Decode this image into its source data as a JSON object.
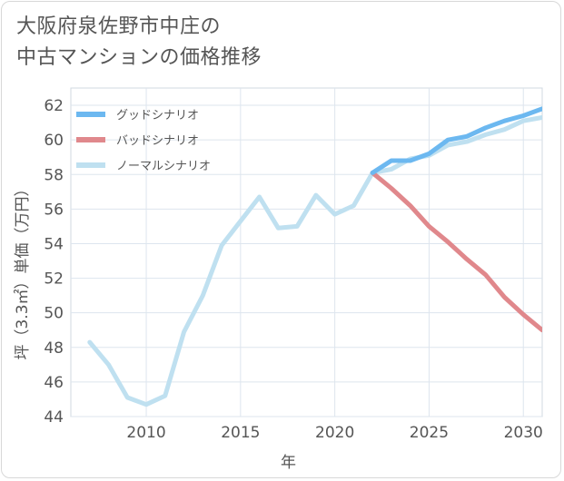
{
  "page": {
    "title_line1": "大阪府泉佐野市中庄の",
    "title_line2": "中古マンションの価格推移"
  },
  "chart_data": {
    "type": "line",
    "title": "大阪府泉佐野市中庄の中古マンションの価格推移",
    "xlabel": "年",
    "ylabel": "坪（3.3㎡）単価（万円）",
    "xlim": [
      2006,
      2031
    ],
    "ylim": [
      44,
      63
    ],
    "x_ticks": [
      2010,
      2015,
      2020,
      2025,
      2030
    ],
    "y_ticks": [
      44,
      46,
      48,
      50,
      52,
      54,
      56,
      58,
      60,
      62
    ],
    "grid": true,
    "legend_position": "top-left",
    "series": [
      {
        "name": "グッドシナリオ",
        "color": "#6cb8f0",
        "x": [
          2022,
          2023,
          2024,
          2025,
          2026,
          2027,
          2028,
          2029,
          2030,
          2031
        ],
        "values": [
          58.1,
          58.8,
          58.8,
          59.2,
          60.0,
          60.2,
          60.7,
          61.1,
          61.4,
          61.8
        ]
      },
      {
        "name": "バッドシナリオ",
        "color": "#e0888c",
        "x": [
          2022,
          2023,
          2024,
          2025,
          2026,
          2027,
          2028,
          2029,
          2030,
          2031
        ],
        "values": [
          58.1,
          57.2,
          56.2,
          55.0,
          54.1,
          53.1,
          52.2,
          50.9,
          49.9,
          49.0
        ]
      },
      {
        "name": "ノーマルシナリオ",
        "color": "#bfe0f0",
        "x": [
          2007,
          2008,
          2009,
          2010,
          2011,
          2012,
          2013,
          2014,
          2015,
          2016,
          2017,
          2018,
          2019,
          2020,
          2021,
          2022,
          2023,
          2024,
          2025,
          2026,
          2027,
          2028,
          2029,
          2030,
          2031
        ],
        "values": [
          48.3,
          47.0,
          45.1,
          44.7,
          45.2,
          48.9,
          51.0,
          53.9,
          55.3,
          56.7,
          54.9,
          55.0,
          56.8,
          55.7,
          56.2,
          58.1,
          58.3,
          58.9,
          59.1,
          59.7,
          59.9,
          60.3,
          60.6,
          61.1,
          61.3
        ]
      }
    ]
  }
}
